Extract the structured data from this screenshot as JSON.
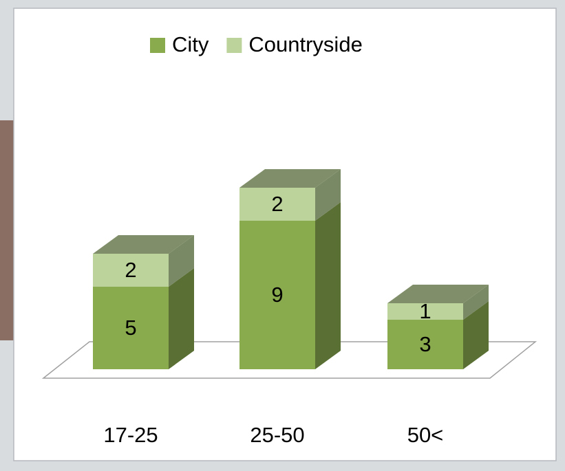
{
  "chart_data": {
    "type": "bar",
    "stacked": true,
    "categories": [
      "17-25",
      "25-50",
      "50<"
    ],
    "series": [
      {
        "name": "City",
        "color": "#8aaa4e",
        "values": [
          5,
          9,
          3
        ]
      },
      {
        "name": "Countryside",
        "color": "#bcd39b",
        "values": [
          2,
          2,
          1
        ]
      }
    ],
    "legend": "top"
  }
}
